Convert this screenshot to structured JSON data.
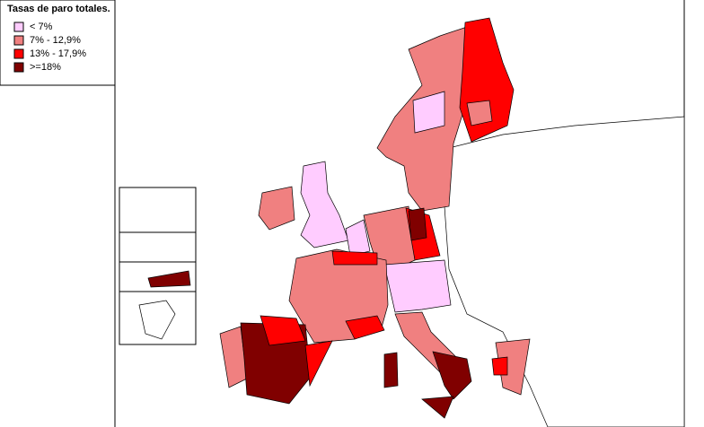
{
  "legend": {
    "title": "Tasas de paro totales.",
    "items": [
      {
        "label": "< 7%",
        "color": "#ffccff"
      },
      {
        "label": "7% - 12,9%",
        "color": "#f08080"
      },
      {
        "label": "13% - 17,9%",
        "color": "#ff0000"
      },
      {
        "label": ">=18%",
        "color": "#800000"
      }
    ]
  }
}
